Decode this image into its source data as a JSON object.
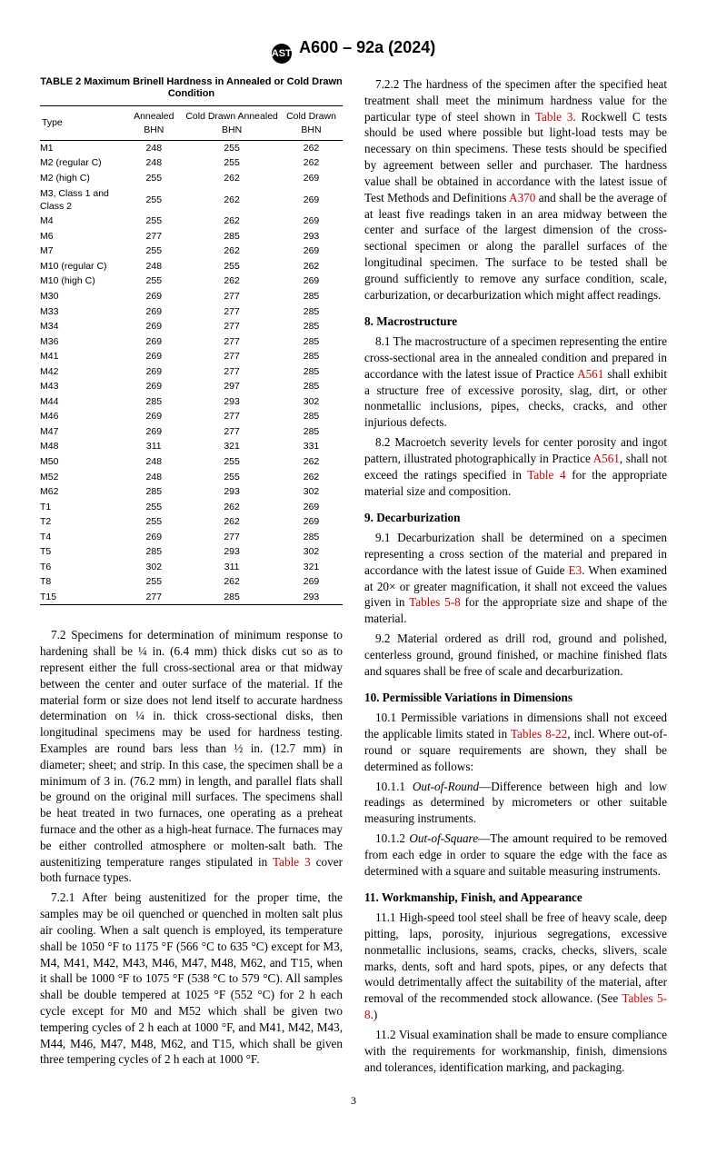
{
  "header": {
    "designation": "A600 – 92a (2024)"
  },
  "table2": {
    "title": "TABLE 2 Maximum Brinell Hardness in Annealed or Cold Drawn Condition",
    "columns": [
      "Type",
      "Annealed BHN",
      "Cold Drawn Annealed BHN",
      "Cold Drawn BHN"
    ],
    "rows": [
      [
        "M1",
        "248",
        "255",
        "262"
      ],
      [
        "M2 (regular C)",
        "248",
        "255",
        "262"
      ],
      [
        "M2 (high C)",
        "255",
        "262",
        "269"
      ],
      [
        "M3, Class 1 and Class 2",
        "255",
        "262",
        "269"
      ],
      [
        "M4",
        "255",
        "262",
        "269"
      ],
      [
        "M6",
        "277",
        "285",
        "293"
      ],
      [
        "M7",
        "255",
        "262",
        "269"
      ],
      [
        "M10 (regular C)",
        "248",
        "255",
        "262"
      ],
      [
        "M10 (high C)",
        "255",
        "262",
        "269"
      ],
      [
        "M30",
        "269",
        "277",
        "285"
      ],
      [
        "M33",
        "269",
        "277",
        "285"
      ],
      [
        "M34",
        "269",
        "277",
        "285"
      ],
      [
        "M36",
        "269",
        "277",
        "285"
      ],
      [
        "M41",
        "269",
        "277",
        "285"
      ],
      [
        "M42",
        "269",
        "277",
        "285"
      ],
      [
        "M43",
        "269",
        "297",
        "285"
      ],
      [
        "M44",
        "285",
        "293",
        "302"
      ],
      [
        "M46",
        "269",
        "277",
        "285"
      ],
      [
        "M47",
        "269",
        "277",
        "285"
      ],
      [
        "M48",
        "311",
        "321",
        "331"
      ],
      [
        "M50",
        "248",
        "255",
        "262"
      ],
      [
        "M52",
        "248",
        "255",
        "262"
      ],
      [
        "M62",
        "285",
        "293",
        "302"
      ],
      [
        "T1",
        "255",
        "262",
        "269"
      ],
      [
        "T2",
        "255",
        "262",
        "269"
      ],
      [
        "T4",
        "269",
        "277",
        "285"
      ],
      [
        "T5",
        "285",
        "293",
        "302"
      ],
      [
        "T6",
        "302",
        "311",
        "321"
      ],
      [
        "T8",
        "255",
        "262",
        "269"
      ],
      [
        "T15",
        "277",
        "285",
        "293"
      ]
    ]
  },
  "body": {
    "p7_2": "7.2 Specimens for determination of minimum response to hardening shall be ¼ in. (6.4 mm) thick disks cut so as to represent either the full cross-sectional area or that midway between the center and outer surface of the material. If the material form or size does not lend itself to accurate hardness determination on ¼ in. thick cross-sectional disks, then longitudinal specimens may be used for hardness testing. Examples are round bars less than ½ in. (12.7 mm) in diameter; sheet; and strip. In this case, the specimen shall be a minimum of 3 in. (76.2 mm) in length, and parallel flats shall be ground on the original mill surfaces. The specimens shall be heat treated in two furnaces, one operating as a preheat furnace and the other as a high-heat furnace. The furnaces may be either controlled atmosphere or molten-salt bath. The austenitizing temperature ranges stipulated in ",
    "p7_2_ref": "Table 3",
    "p7_2_tail": " cover both furnace types.",
    "p7_2_1": "7.2.1 After being austenitized for the proper time, the samples may be oil quenched or quenched in molten salt plus air cooling. When a salt quench is employed, its temperature shall be 1050 °F to 1175 °F (566 °C to 635 °C) except for M3, M4, M41, M42, M43, M46, M47, M48, M62, and T15, when it shall be 1000 °F to 1075 °F (538 °C to 579 °C). All samples shall be double tempered at 1025 °F (552 °C) for 2 h each cycle except for M0 and M52 which shall be given two tempering cycles of 2 h each at 1000 °F, and M41, M42, M43, M44, M46, M47, M48, M62, and T15, which shall be given three tempering cycles of 2 h each at 1000 °F.",
    "p7_2_2a": "7.2.2 The hardness of the specimen after the specified heat treatment shall meet the minimum hardness value for the particular type of steel shown in ",
    "p7_2_2_ref": "Table 3",
    "p7_2_2b": ". Rockwell C tests should be used where possible but light-load tests may be necessary on thin specimens. These tests should be specified by agreement between seller and purchaser. The hardness value shall be obtained in accordance with the latest issue of Test Methods and Definitions ",
    "p7_2_2_ref2": "A370",
    "p7_2_2c": " and shall be the average of at least five readings taken in an area midway between the center and surface of the largest dimension of the cross-sectional specimen or along the parallel surfaces of the longitudinal specimen. The surface to be tested shall be ground sufficiently to remove any surface condition, scale, carburization, or decarburization which might affect readings.",
    "h8": "8.  Macrostructure",
    "p8_1a": "8.1 The macrostructure of a specimen representing the entire cross-sectional area in the annealed condition and prepared in accordance with the latest issue of Practice ",
    "p8_1_ref": "A561",
    "p8_1b": " shall exhibit a structure free of excessive porosity, slag, dirt, or other nonmetallic inclusions, pipes, checks, cracks, and other injurious defects.",
    "p8_2a": "8.2 Macroetch severity levels for center porosity and ingot pattern, illustrated photographically in Practice ",
    "p8_2_ref1": "A561",
    "p8_2b": ", shall not exceed the ratings specified in ",
    "p8_2_ref2": "Table 4",
    "p8_2c": " for the appropriate material size and composition.",
    "h9": "9.  Decarburization",
    "p9_1a": "9.1 Decarburization shall be determined on a specimen representing a cross section of the material and prepared in accordance with the latest issue of Guide ",
    "p9_1_ref1": "E3",
    "p9_1b": ". When examined at 20× or greater magnification, it shall not exceed the values given in ",
    "p9_1_ref2": "Tables 5-8",
    "p9_1c": " for the appropriate size and shape of the material.",
    "p9_2": "9.2 Material ordered as drill rod, ground and polished, centerless ground, ground finished, or machine finished flats and squares shall be free of scale and decarburization.",
    "h10": "10.  Permissible Variations in Dimensions",
    "p10_1a": "10.1 Permissible variations in dimensions shall not exceed the applicable limits stated in ",
    "p10_1_ref": "Tables 8-22",
    "p10_1b": ", incl. Where out-of-round or square requirements are shown, they shall be determined as follows:",
    "p10_1_1_term": "Out-of-Round",
    "p10_1_1": "10.1.1 ",
    "p10_1_1b": "—Difference between high and low readings as determined by micrometers or other suitable measuring instruments.",
    "p10_1_2": "10.1.2 ",
    "p10_1_2_term": "Out-of-Square",
    "p10_1_2b": "—The amount required to be removed from each edge in order to square the edge with the face as determined with a square and suitable measuring instruments.",
    "h11": "11.  Workmanship, Finish, and Appearance",
    "p11_1a": "11.1 High-speed tool steel shall be free of heavy scale, deep pitting, laps, porosity, injurious segregations, excessive nonmetallic inclusions, seams, cracks, checks, slivers, scale marks, dents, soft and hard spots, pipes, or any defects that would detrimentally affect the suitability of the material, after removal of the recommended stock allowance. (See ",
    "p11_1_ref": "Tables 5-8",
    "p11_1b": ".)",
    "p11_2": "11.2 Visual examination shall be made to ensure compliance with the requirements for workmanship, finish, dimensions and tolerances, identification marking, and packaging."
  },
  "page_number": "3"
}
